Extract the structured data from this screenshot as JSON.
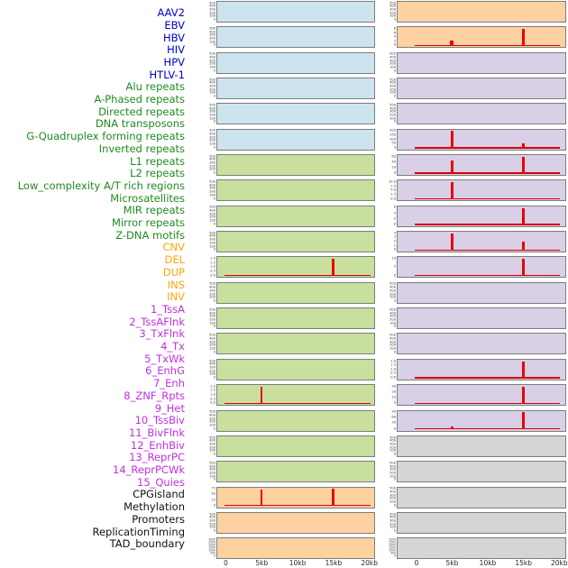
{
  "colors": {
    "label_virus": "#0000cc",
    "label_repeat": "#1f8b1f",
    "label_sv": "#ffa408",
    "label_chromatin": "#c02fe0",
    "label_other": "#111111",
    "panel_blue": "#cde4ee",
    "panel_green": "#c9df9e",
    "panel_orange": "#fdd1a0",
    "panel_purple": "#d9cfe7",
    "panel_gray": "#d5d5d5",
    "spike_red": "#e60505",
    "baseline_red": "#d40000",
    "panel_border": "#7c7c7c"
  },
  "row_labels": [
    {
      "text": "AAV2",
      "category": "virus"
    },
    {
      "text": "EBV",
      "category": "virus"
    },
    {
      "text": "HBV",
      "category": "virus"
    },
    {
      "text": "HIV",
      "category": "virus"
    },
    {
      "text": "HPV",
      "category": "virus"
    },
    {
      "text": "HTLV-1",
      "category": "virus"
    },
    {
      "text": "Alu repeats",
      "category": "repeat"
    },
    {
      "text": "A-Phased repeats",
      "category": "repeat"
    },
    {
      "text": "Directed repeats",
      "category": "repeat"
    },
    {
      "text": "DNA transposons",
      "category": "repeat"
    },
    {
      "text": "G-Quadruplex forming repeats",
      "category": "repeat"
    },
    {
      "text": "Inverted repeats",
      "category": "repeat"
    },
    {
      "text": "L1 repeats",
      "category": "repeat"
    },
    {
      "text": "L2 repeats",
      "category": "repeat"
    },
    {
      "text": "Low_complexity A/T rich regions",
      "category": "repeat"
    },
    {
      "text": "Microsatellites",
      "category": "repeat"
    },
    {
      "text": "MIR repeats",
      "category": "repeat"
    },
    {
      "text": "Mirror repeats",
      "category": "repeat"
    },
    {
      "text": "Z-DNA motifs",
      "category": "repeat"
    },
    {
      "text": "CNV",
      "category": "sv"
    },
    {
      "text": "DEL",
      "category": "sv"
    },
    {
      "text": "DUP",
      "category": "sv"
    },
    {
      "text": "INS",
      "category": "sv"
    },
    {
      "text": "INV",
      "category": "sv"
    },
    {
      "text": "1_TssA",
      "category": "chromatin"
    },
    {
      "text": "2_TssAFlnk",
      "category": "chromatin"
    },
    {
      "text": "3_TxFlnk",
      "category": "chromatin"
    },
    {
      "text": "4_Tx",
      "category": "chromatin"
    },
    {
      "text": "5_TxWk",
      "category": "chromatin"
    },
    {
      "text": "6_EnhG",
      "category": "chromatin"
    },
    {
      "text": "7_Enh",
      "category": "chromatin"
    },
    {
      "text": "8_ZNF_Rpts",
      "category": "chromatin"
    },
    {
      "text": "9_Het",
      "category": "chromatin"
    },
    {
      "text": "10_TssBiv",
      "category": "chromatin"
    },
    {
      "text": "11_BivFlnk",
      "category": "chromatin"
    },
    {
      "text": "12_EnhBiv",
      "category": "chromatin"
    },
    {
      "text": "13_ReprPC",
      "category": "chromatin"
    },
    {
      "text": "14_ReprPCWk",
      "category": "chromatin"
    },
    {
      "text": "15_Quies",
      "category": "chromatin"
    },
    {
      "text": "CPGisland",
      "category": "other"
    },
    {
      "text": "Methylation",
      "category": "other"
    },
    {
      "text": "Promoters",
      "category": "other"
    },
    {
      "text": "ReplicationTiming",
      "category": "other"
    },
    {
      "text": "TAD_boundary",
      "category": "other"
    }
  ],
  "x_axis": {
    "tick_labels": [
      "0",
      "5kb",
      "10kb",
      "15kb",
      "20kb"
    ],
    "range_kb": [
      0,
      20
    ]
  },
  "chart_data": [
    {
      "type": "bar",
      "name": "AAV2",
      "column": "left",
      "row": 1,
      "panel_color": "blue",
      "yticks": [
        "500",
        "400",
        "300",
        "200",
        "100",
        "0"
      ],
      "ylim": [
        0,
        500
      ],
      "spikes": [],
      "baseline": false
    },
    {
      "type": "bar",
      "name": "EBV",
      "column": "left",
      "row": 2,
      "panel_color": "blue",
      "yticks": [
        "500",
        "400",
        "300",
        "200",
        "100",
        "0"
      ],
      "ylim": [
        0,
        500
      ],
      "spikes": [],
      "baseline": false
    },
    {
      "type": "bar",
      "name": "HBV",
      "column": "left",
      "row": 3,
      "panel_color": "blue",
      "yticks": [
        "500",
        "400",
        "300",
        "200",
        "100",
        "0"
      ],
      "ylim": [
        0,
        500
      ],
      "spikes": [],
      "baseline": false
    },
    {
      "type": "bar",
      "name": "HIV",
      "column": "left",
      "row": 4,
      "panel_color": "blue",
      "yticks": [
        "500",
        "400",
        "300",
        "200",
        "100",
        "0"
      ],
      "ylim": [
        0,
        500
      ],
      "spikes": [],
      "baseline": false
    },
    {
      "type": "bar",
      "name": "HPV",
      "column": "left",
      "row": 5,
      "panel_color": "blue",
      "yticks": [
        "500",
        "400",
        "300",
        "200",
        "100",
        "0"
      ],
      "ylim": [
        0,
        500
      ],
      "spikes": [],
      "baseline": false
    },
    {
      "type": "bar",
      "name": "HTLV-1",
      "column": "left",
      "row": 6,
      "panel_color": "blue",
      "yticks": [
        "500",
        "400",
        "300",
        "200",
        "100",
        "0"
      ],
      "ylim": [
        0,
        500
      ],
      "spikes": [],
      "baseline": false
    },
    {
      "type": "bar",
      "name": "Alu repeats",
      "column": "left",
      "row": 7,
      "panel_color": "green",
      "yticks": [
        "500",
        "400",
        "300",
        "200",
        "100",
        "0"
      ],
      "ylim": [
        0,
        500
      ],
      "spikes": [],
      "baseline": false
    },
    {
      "type": "bar",
      "name": "A-Phased repeats",
      "column": "left",
      "row": 8,
      "panel_color": "green",
      "yticks": [
        "500",
        "400",
        "300",
        "200",
        "100",
        "0"
      ],
      "ylim": [
        0,
        500
      ],
      "spikes": [],
      "baseline": false
    },
    {
      "type": "bar",
      "name": "Directed repeats",
      "column": "left",
      "row": 9,
      "panel_color": "green",
      "yticks": [
        "500",
        "400",
        "300",
        "200",
        "100",
        "0"
      ],
      "ylim": [
        0,
        500
      ],
      "spikes": [],
      "baseline": false
    },
    {
      "type": "bar",
      "name": "DNA transposons",
      "column": "left",
      "row": 10,
      "panel_color": "green",
      "yticks": [
        "500",
        "400",
        "300",
        "200",
        "100",
        "0"
      ],
      "ylim": [
        0,
        500
      ],
      "spikes": [],
      "baseline": false
    },
    {
      "type": "bar",
      "name": "G-Quadruplex forming repeats",
      "column": "left",
      "row": 11,
      "panel_color": "green",
      "yticks": [
        "2.0",
        "1.5",
        "1.0",
        "0.5",
        "0.0"
      ],
      "ylim": [
        0,
        2.15
      ],
      "spikes": [
        {
          "x_kb": 15,
          "value": 2.05
        }
      ],
      "baseline": true
    },
    {
      "type": "bar",
      "name": "Inverted repeats",
      "column": "left",
      "row": 12,
      "panel_color": "green",
      "yticks": [
        "500",
        "400",
        "300",
        "200",
        "100",
        "0"
      ],
      "ylim": [
        0,
        500
      ],
      "spikes": [],
      "baseline": false
    },
    {
      "type": "bar",
      "name": "L1 repeats",
      "column": "left",
      "row": 13,
      "panel_color": "green",
      "yticks": [
        "500",
        "400",
        "300",
        "200",
        "100",
        "0"
      ],
      "ylim": [
        0,
        500
      ],
      "spikes": [],
      "baseline": false
    },
    {
      "type": "bar",
      "name": "L2 repeats",
      "column": "left",
      "row": 14,
      "panel_color": "green",
      "yticks": [
        "500",
        "400",
        "300",
        "200",
        "100",
        "0"
      ],
      "ylim": [
        0,
        500
      ],
      "spikes": [],
      "baseline": false
    },
    {
      "type": "bar",
      "name": "Low_complexity A/T rich regions",
      "column": "left",
      "row": 15,
      "panel_color": "green",
      "yticks": [
        "500",
        "400",
        "300",
        "200",
        "100",
        "0"
      ],
      "ylim": [
        0,
        500
      ],
      "spikes": [],
      "baseline": false
    },
    {
      "type": "bar",
      "name": "Microsatellites",
      "column": "left",
      "row": 16,
      "panel_color": "green",
      "yticks": [
        "2.0",
        "1.5",
        "1.0",
        "0.5",
        "0.0"
      ],
      "ylim": [
        0,
        2.15
      ],
      "spikes": [
        {
          "x_kb": 5,
          "value": 2.05
        }
      ],
      "baseline": true
    },
    {
      "type": "bar",
      "name": "MIR repeats",
      "column": "left",
      "row": 17,
      "panel_color": "green",
      "yticks": [
        "500",
        "400",
        "300",
        "200",
        "100",
        "0"
      ],
      "ylim": [
        0,
        500
      ],
      "spikes": [],
      "baseline": false
    },
    {
      "type": "bar",
      "name": "Mirror repeats",
      "column": "left",
      "row": 18,
      "panel_color": "green",
      "yticks": [
        "500",
        "400",
        "300",
        "200",
        "100",
        "0"
      ],
      "ylim": [
        0,
        500
      ],
      "spikes": [],
      "baseline": false
    },
    {
      "type": "bar",
      "name": "Z-DNA motifs",
      "column": "left",
      "row": 19,
      "panel_color": "green",
      "yticks": [
        "500",
        "400",
        "300",
        "200",
        "100",
        "0"
      ],
      "ylim": [
        0,
        500
      ],
      "spikes": [],
      "baseline": false
    },
    {
      "type": "bar",
      "name": "CNV",
      "column": "left",
      "row": 20,
      "panel_color": "orange",
      "yticks": [
        "75",
        "50",
        "25",
        "0"
      ],
      "ylim": [
        0,
        85
      ],
      "spikes": [
        {
          "x_kb": 5,
          "value": 78
        },
        {
          "x_kb": 15,
          "value": 82
        }
      ],
      "baseline": true
    },
    {
      "type": "bar",
      "name": "DEL",
      "column": "left",
      "row": 21,
      "panel_color": "orange",
      "yticks": [
        "500",
        "400",
        "300",
        "200",
        "100",
        "0"
      ],
      "ylim": [
        0,
        500
      ],
      "spikes": [],
      "baseline": false
    },
    {
      "type": "bar",
      "name": "DUP",
      "column": "left",
      "row": 22,
      "panel_color": "orange",
      "yticks": [
        "3000",
        "2500",
        "2000",
        "1500",
        "1000",
        "500",
        "0"
      ],
      "ylim": [
        0,
        3000
      ],
      "spikes": [],
      "baseline": false
    },
    {
      "type": "bar",
      "name": "INS",
      "column": "right",
      "row": 1,
      "panel_color": "orange",
      "yticks": [
        "500",
        "400",
        "300",
        "200",
        "100",
        "0"
      ],
      "ylim": [
        0,
        500
      ],
      "spikes": [],
      "baseline": false
    },
    {
      "type": "bar",
      "name": "INV",
      "column": "right",
      "row": 2,
      "panel_color": "orange",
      "yticks": [
        "8",
        "6",
        "4",
        "2",
        "0"
      ],
      "ylim": [
        0,
        8.8
      ],
      "spikes": [
        {
          "x_kb": 5,
          "value": 2.2,
          "w": 4
        },
        {
          "x_kb": 15,
          "value": 8.5
        }
      ],
      "baseline": true
    },
    {
      "type": "bar",
      "name": "1_TssA",
      "column": "right",
      "row": 3,
      "panel_color": "purple",
      "yticks": [
        "500",
        "400",
        "300",
        "200",
        "100",
        "0"
      ],
      "ylim": [
        0,
        500
      ],
      "spikes": [],
      "baseline": false
    },
    {
      "type": "bar",
      "name": "2_TssAFlnk",
      "column": "right",
      "row": 4,
      "panel_color": "purple",
      "yticks": [
        "500",
        "400",
        "300",
        "200",
        "100",
        "0"
      ],
      "ylim": [
        0,
        500
      ],
      "spikes": [],
      "baseline": false
    },
    {
      "type": "bar",
      "name": "3_TxFlnk",
      "column": "right",
      "row": 5,
      "panel_color": "purple",
      "yticks": [
        "500",
        "400",
        "300",
        "200",
        "100",
        "0"
      ],
      "ylim": [
        0,
        500
      ],
      "spikes": [],
      "baseline": false
    },
    {
      "type": "bar",
      "name": "4_Tx",
      "column": "right",
      "row": 6,
      "panel_color": "purple",
      "yticks": [
        "200",
        "150",
        "100",
        "50",
        "0"
      ],
      "ylim": [
        0,
        215
      ],
      "spikes": [
        {
          "x_kb": 5,
          "value": 208,
          "w": 3.5
        },
        {
          "x_kb": 15,
          "value": 50
        }
      ],
      "baseline": true
    },
    {
      "type": "bar",
      "name": "5_TxWk",
      "column": "right",
      "row": 7,
      "panel_color": "purple",
      "yticks": [
        "60",
        "40",
        "20",
        "0"
      ],
      "ylim": [
        0,
        66
      ],
      "spikes": [
        {
          "x_kb": 5,
          "value": 48
        },
        {
          "x_kb": 15,
          "value": 63
        }
      ],
      "baseline": true
    },
    {
      "type": "bar",
      "name": "6_EnhG",
      "column": "right",
      "row": 8,
      "panel_color": "purple",
      "yticks": [
        "10.0",
        "7.5",
        "5.0",
        "2.5",
        "0.0"
      ],
      "ylim": [
        0,
        10.8
      ],
      "spikes": [
        {
          "x_kb": 5,
          "value": 10.4
        }
      ],
      "baseline": true
    },
    {
      "type": "bar",
      "name": "7_Enh",
      "column": "right",
      "row": 9,
      "panel_color": "purple",
      "yticks": [
        "6",
        "4",
        "2",
        "0"
      ],
      "ylim": [
        0,
        6.8
      ],
      "spikes": [
        {
          "x_kb": 15,
          "value": 6.5
        }
      ],
      "baseline": true
    },
    {
      "type": "bar",
      "name": "8_ZNF_Rpts",
      "column": "right",
      "row": 10,
      "panel_color": "purple",
      "yticks": [
        "4",
        "3",
        "2",
        "1",
        "0"
      ],
      "ylim": [
        0,
        4.5
      ],
      "spikes": [
        {
          "x_kb": 5,
          "value": 4.3
        },
        {
          "x_kb": 15,
          "value": 2.0
        }
      ],
      "baseline": true
    },
    {
      "type": "bar",
      "name": "9_Het",
      "column": "right",
      "row": 11,
      "panel_color": "purple",
      "yticks": [
        "10",
        "5",
        "0"
      ],
      "ylim": [
        0,
        13
      ],
      "spikes": [
        {
          "x_kb": 15,
          "value": 12.5
        }
      ],
      "baseline": true
    },
    {
      "type": "bar",
      "name": "10_TssBiv",
      "column": "right",
      "row": 12,
      "panel_color": "purple",
      "yticks": [
        "500",
        "400",
        "300",
        "200",
        "100",
        "0"
      ],
      "ylim": [
        0,
        500
      ],
      "spikes": [],
      "baseline": false
    },
    {
      "type": "bar",
      "name": "11_BivFlnk",
      "column": "right",
      "row": 13,
      "panel_color": "purple",
      "yticks": [
        "500",
        "400",
        "300",
        "200",
        "100",
        "0"
      ],
      "ylim": [
        0,
        500
      ],
      "spikes": [],
      "baseline": false
    },
    {
      "type": "bar",
      "name": "12_EnhBiv",
      "column": "right",
      "row": 14,
      "panel_color": "purple",
      "yticks": [
        "500",
        "400",
        "300",
        "200",
        "100",
        "0"
      ],
      "ylim": [
        0,
        500
      ],
      "spikes": [],
      "baseline": false
    },
    {
      "type": "bar",
      "name": "13_ReprPC",
      "column": "right",
      "row": 15,
      "panel_color": "purple",
      "yticks": [
        "2.0",
        "1.5",
        "1.0",
        "0.5",
        "0.0"
      ],
      "ylim": [
        0,
        2.15
      ],
      "spikes": [
        {
          "x_kb": 15,
          "value": 2.05
        }
      ],
      "baseline": true
    },
    {
      "type": "bar",
      "name": "14_ReprPCWk",
      "column": "right",
      "row": 16,
      "panel_color": "purple",
      "yticks": [
        "30",
        "20",
        "10",
        "0"
      ],
      "ylim": [
        0,
        33
      ],
      "spikes": [
        {
          "x_kb": 15,
          "value": 32
        }
      ],
      "baseline": true
    },
    {
      "type": "bar",
      "name": "15_Quies",
      "column": "right",
      "row": 17,
      "panel_color": "purple",
      "yticks": [
        "90",
        "60",
        "30",
        "0"
      ],
      "ylim": [
        0,
        120
      ],
      "spikes": [
        {
          "x_kb": 5,
          "value": 8
        },
        {
          "x_kb": 15,
          "value": 115
        }
      ],
      "baseline": true
    },
    {
      "type": "bar",
      "name": "CPGisland",
      "column": "right",
      "row": 18,
      "panel_color": "gray",
      "yticks": [
        "500",
        "400",
        "300",
        "200",
        "100",
        "0"
      ],
      "ylim": [
        0,
        500
      ],
      "spikes": [],
      "baseline": false
    },
    {
      "type": "bar",
      "name": "Methylation",
      "column": "right",
      "row": 19,
      "panel_color": "gray",
      "yticks": [
        "500",
        "400",
        "300",
        "200",
        "100",
        "0"
      ],
      "ylim": [
        0,
        500
      ],
      "spikes": [],
      "baseline": false
    },
    {
      "type": "bar",
      "name": "Promoters",
      "column": "right",
      "row": 20,
      "panel_color": "gray",
      "yticks": [
        "500",
        "400",
        "300",
        "200",
        "100",
        "0"
      ],
      "ylim": [
        0,
        500
      ],
      "spikes": [],
      "baseline": false
    },
    {
      "type": "bar",
      "name": "ReplicationTiming",
      "column": "right",
      "row": 21,
      "panel_color": "gray",
      "yticks": [
        "500",
        "400",
        "300",
        "200",
        "100",
        "0"
      ],
      "ylim": [
        0,
        500
      ],
      "spikes": [],
      "baseline": false
    },
    {
      "type": "bar",
      "name": "TAD_boundary",
      "column": "right",
      "row": 22,
      "panel_color": "gray",
      "yticks": [
        "3000",
        "2500",
        "2000",
        "1500",
        "1000",
        "500",
        "0"
      ],
      "ylim": [
        0,
        3000
      ],
      "spikes": [],
      "baseline": false
    }
  ]
}
